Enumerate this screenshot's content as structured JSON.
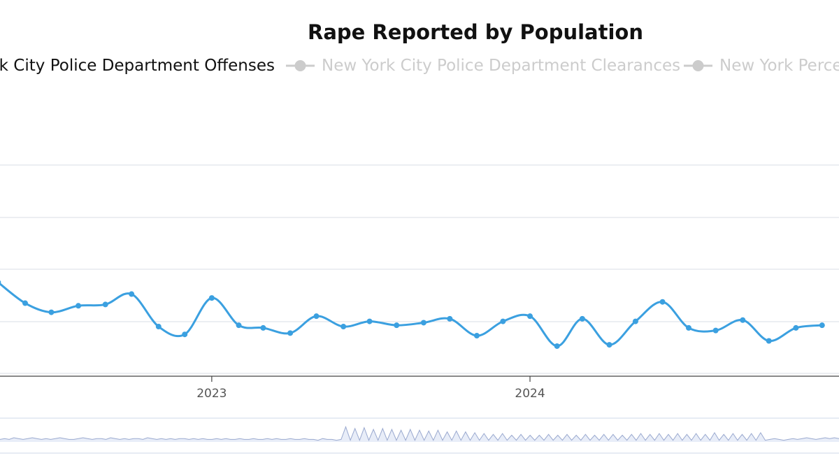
{
  "chart_data": {
    "type": "line",
    "title": "Rape Reported by Population",
    "legend": {
      "placement": "top",
      "items": [
        {
          "label": "New York City Police Department Offenses",
          "active": true,
          "color": "#3ba0e0"
        },
        {
          "label": "New York City Police Department Clearances",
          "active": false,
          "color": "#cccccc"
        },
        {
          "label": "New York Percent of Population",
          "active": false,
          "color": "#cccccc"
        }
      ]
    },
    "x_axis": {
      "type": "time",
      "range": [
        "2022-05-01",
        "2024-12-31"
      ],
      "ticks": [
        {
          "date": "2023-01-01",
          "label": "2023"
        },
        {
          "date": "2024-01-01",
          "label": "2024"
        }
      ]
    },
    "y_axis": {
      "grid": true,
      "grid_lines": 5
    },
    "series": [
      {
        "name": "New York City Police Department Offenses",
        "color": "#3ba0e0",
        "points": [
          {
            "x": "2022-05-01",
            "y": 0.7
          },
          {
            "x": "2022-06-01",
            "y": 0.54
          },
          {
            "x": "2022-07-01",
            "y": 0.47
          },
          {
            "x": "2022-08-01",
            "y": 0.52
          },
          {
            "x": "2022-09-01",
            "y": 0.53
          },
          {
            "x": "2022-10-01",
            "y": 0.61
          },
          {
            "x": "2022-11-01",
            "y": 0.36
          },
          {
            "x": "2022-12-01",
            "y": 0.3
          },
          {
            "x": "2023-01-01",
            "y": 0.58
          },
          {
            "x": "2023-02-01",
            "y": 0.37
          },
          {
            "x": "2023-03-01",
            "y": 0.35
          },
          {
            "x": "2023-04-01",
            "y": 0.31
          },
          {
            "x": "2023-05-01",
            "y": 0.44
          },
          {
            "x": "2023-06-01",
            "y": 0.36
          },
          {
            "x": "2023-07-01",
            "y": 0.4
          },
          {
            "x": "2023-08-01",
            "y": 0.37
          },
          {
            "x": "2023-09-01",
            "y": 0.39
          },
          {
            "x": "2023-10-01",
            "y": 0.42
          },
          {
            "x": "2023-11-01",
            "y": 0.29
          },
          {
            "x": "2023-12-01",
            "y": 0.4
          },
          {
            "x": "2024-01-01",
            "y": 0.44
          },
          {
            "x": "2024-02-01",
            "y": 0.21
          },
          {
            "x": "2024-03-01",
            "y": 0.42
          },
          {
            "x": "2024-04-01",
            "y": 0.22
          },
          {
            "x": "2024-05-01",
            "y": 0.4
          },
          {
            "x": "2024-06-01",
            "y": 0.55
          },
          {
            "x": "2024-07-01",
            "y": 0.35
          },
          {
            "x": "2024-08-01",
            "y": 0.33
          },
          {
            "x": "2024-09-01",
            "y": 0.41
          },
          {
            "x": "2024-10-01",
            "y": 0.25
          },
          {
            "x": "2024-11-01",
            "y": 0.35
          },
          {
            "x": "2024-12-01",
            "y": 0.37
          }
        ]
      }
    ],
    "overview_navigator": {
      "present": true,
      "range": [
        "1985-01-01",
        "2024-12-31"
      ],
      "values": [
        3,
        4,
        3,
        5,
        4,
        3,
        4,
        5,
        4,
        3,
        4,
        3,
        4,
        5,
        4,
        3,
        3,
        4,
        5,
        4,
        3,
        4,
        4,
        3,
        5,
        4,
        3,
        4,
        3,
        4,
        4,
        3,
        5,
        4,
        3,
        4,
        3,
        4,
        3,
        4,
        4,
        3,
        4,
        3,
        4,
        3,
        3,
        4,
        3,
        4,
        3,
        3,
        4,
        3,
        3,
        4,
        3,
        3,
        4,
        3,
        4,
        3,
        3,
        4,
        3,
        3,
        4,
        3,
        3,
        2,
        4,
        3,
        3,
        2,
        3,
        18,
        2,
        16,
        2,
        17,
        2,
        15,
        2,
        16,
        2,
        15,
        2,
        14,
        2,
        15,
        2,
        14,
        2,
        13,
        2,
        14,
        2,
        12,
        2,
        13,
        2,
        12,
        2,
        11,
        2,
        10,
        2,
        9,
        2,
        10,
        2,
        8,
        2,
        9,
        2,
        8,
        2,
        8,
        2,
        9,
        2,
        8,
        2,
        9,
        2,
        8,
        2,
        9,
        2,
        8,
        2,
        9,
        2,
        9,
        2,
        8,
        2,
        9,
        2,
        10,
        2,
        9,
        2,
        10,
        2,
        9,
        2,
        10,
        2,
        9,
        2,
        10,
        2,
        9,
        2,
        11,
        2,
        9,
        2,
        10,
        2,
        9,
        2,
        10,
        2,
        11,
        2,
        3,
        4,
        3,
        2,
        3,
        4,
        3,
        4,
        5,
        4,
        3,
        4,
        5,
        4,
        5,
        4
      ]
    }
  }
}
